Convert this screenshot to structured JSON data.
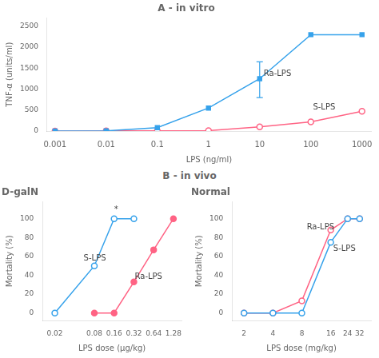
{
  "chart_data": [
    {
      "type": "line",
      "title": "A - in vitro",
      "xlabel": "LPS (ng/ml)",
      "ylabel": "TNF-α (units/ml)",
      "log": "x",
      "grid": false,
      "xlim": [
        0.0007,
        1500
      ],
      "xticks": [
        0.001,
        0.01,
        0.1,
        1,
        10,
        100,
        1000
      ],
      "ylim": [
        0,
        2700
      ],
      "yticks": [
        0,
        500,
        1000,
        1500,
        2000,
        2500
      ],
      "series": [
        {
          "name": "Ra-LPS",
          "marker": "square",
          "x": [
            0.001,
            0.01,
            0.1,
            1,
            10,
            100,
            1000
          ],
          "values": [
            0,
            5,
            80,
            550,
            1250,
            2300,
            2300
          ],
          "yerr_minus": [
            null,
            null,
            null,
            null,
            450,
            null,
            null
          ],
          "yerr_plus": [
            null,
            null,
            null,
            null,
            400,
            null,
            null
          ]
        },
        {
          "name": "S-LPS",
          "marker": "open-circle",
          "x": [
            0.001,
            0.01,
            0.1,
            1,
            10,
            100,
            1000
          ],
          "values": [
            0,
            5,
            5,
            10,
            100,
            220,
            470
          ]
        }
      ],
      "annotations": [
        {
          "text": "Ra-LPS",
          "x": 12,
          "y": 1310
        },
        {
          "text": "S-LPS",
          "x": 110,
          "y": 510
        }
      ]
    },
    {
      "type": "heading",
      "title": "B - in vivo"
    },
    {
      "type": "line",
      "title": "D-galN",
      "xlabel": "LPS dose (μg/kg)",
      "ylabel": "Mortality (%)",
      "log": "x",
      "grid": false,
      "xlim": [
        0.013,
        1.7
      ],
      "xticks": [
        0.02,
        0.08,
        0.16,
        0.32,
        0.64,
        1.28
      ],
      "ylim": [
        -8,
        118
      ],
      "yticks": [
        0,
        20,
        40,
        60,
        80,
        100
      ],
      "series": [
        {
          "name": "S-LPS",
          "marker": "open-circle",
          "x": [
            0.02,
            0.08,
            0.16,
            0.32
          ],
          "values": [
            0,
            50,
            100,
            100
          ]
        },
        {
          "name": "Ra-LPS",
          "marker": "circle",
          "x": [
            0.08,
            0.16,
            0.32,
            0.64,
            1.28
          ],
          "values": [
            0,
            0,
            33,
            67,
            100
          ]
        }
      ],
      "annotations": [
        {
          "text": "*",
          "x": 0.16,
          "y": 107
        },
        {
          "text": "S-LPS",
          "x": 0.055,
          "y": 56
        },
        {
          "text": "Ra-LPS",
          "x": 0.33,
          "y": 36
        }
      ]
    },
    {
      "type": "line",
      "title": "Normal",
      "xlabel": "LPS dose (mg/kg)",
      "ylabel": "Mortality (%)",
      "log": "x",
      "grid": false,
      "xlim": [
        1.5,
        42
      ],
      "xticks": [
        2,
        4,
        8,
        16,
        24,
        32
      ],
      "ylim": [
        -8,
        118
      ],
      "yticks": [
        0,
        20,
        40,
        60,
        80,
        100
      ],
      "series": [
        {
          "name": "S-LPS",
          "marker": "open-circle",
          "x": [
            2,
            4,
            8,
            16,
            24,
            32
          ],
          "values": [
            0,
            0,
            0,
            75,
            100,
            100
          ]
        },
        {
          "name": "Ra-LPS",
          "marker": "open-circle",
          "x": [
            2,
            4,
            8,
            16,
            24,
            32
          ],
          "values": [
            0,
            0,
            13,
            88,
            100,
            100
          ]
        }
      ],
      "annotations": [
        {
          "text": "Ra-LPS",
          "x": 9,
          "y": 89
        },
        {
          "text": "S-LPS",
          "x": 17,
          "y": 66
        }
      ]
    }
  ]
}
